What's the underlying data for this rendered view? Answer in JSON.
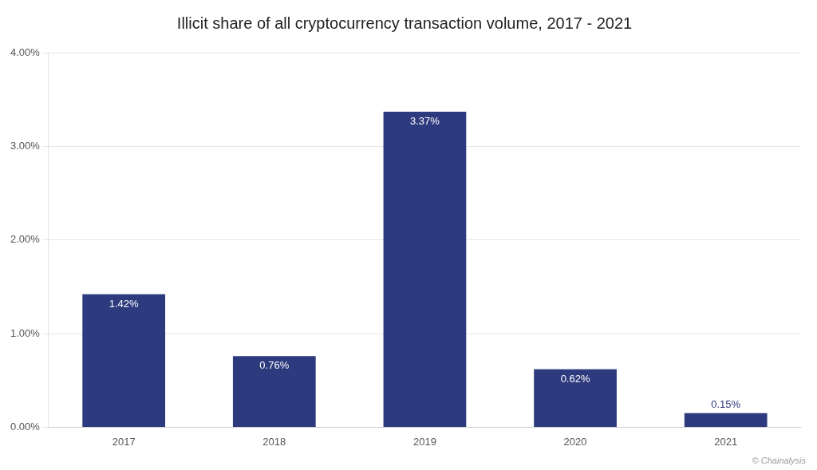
{
  "chart_data": {
    "type": "bar",
    "title": "Illicit share of all cryptocurrency transaction volume, 2017 - 2021",
    "categories": [
      "2017",
      "2018",
      "2019",
      "2020",
      "2021"
    ],
    "values": [
      1.42,
      0.76,
      3.37,
      0.62,
      0.15
    ],
    "value_labels": [
      "1.42%",
      "0.76%",
      "3.37%",
      "0.62%",
      "0.15%"
    ],
    "data_labels": true,
    "color": "#2e3a7e",
    "ylim": [
      0,
      4.0
    ],
    "yticks": [
      {
        "value": 0.0,
        "label": "0.00%"
      },
      {
        "value": 1.0,
        "label": "1.00%"
      },
      {
        "value": 2.0,
        "label": "2.00%"
      },
      {
        "value": 3.0,
        "label": "3.00%"
      },
      {
        "value": 4.0,
        "label": "4.00%"
      }
    ],
    "grid": true,
    "annotations": [
      "© Chainalysis"
    ]
  }
}
